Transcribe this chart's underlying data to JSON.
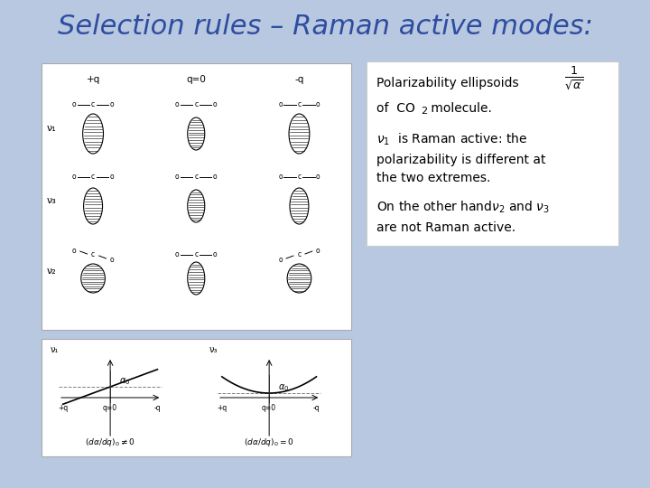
{
  "title": "Selection rules – Raman active modes:",
  "title_color": "#2E4DA0",
  "title_fontsize": 22,
  "bg_color": "#B8C8E0",
  "label_v1": "ν₁",
  "label_v3": "ν₃",
  "label_v2": "ν₂"
}
